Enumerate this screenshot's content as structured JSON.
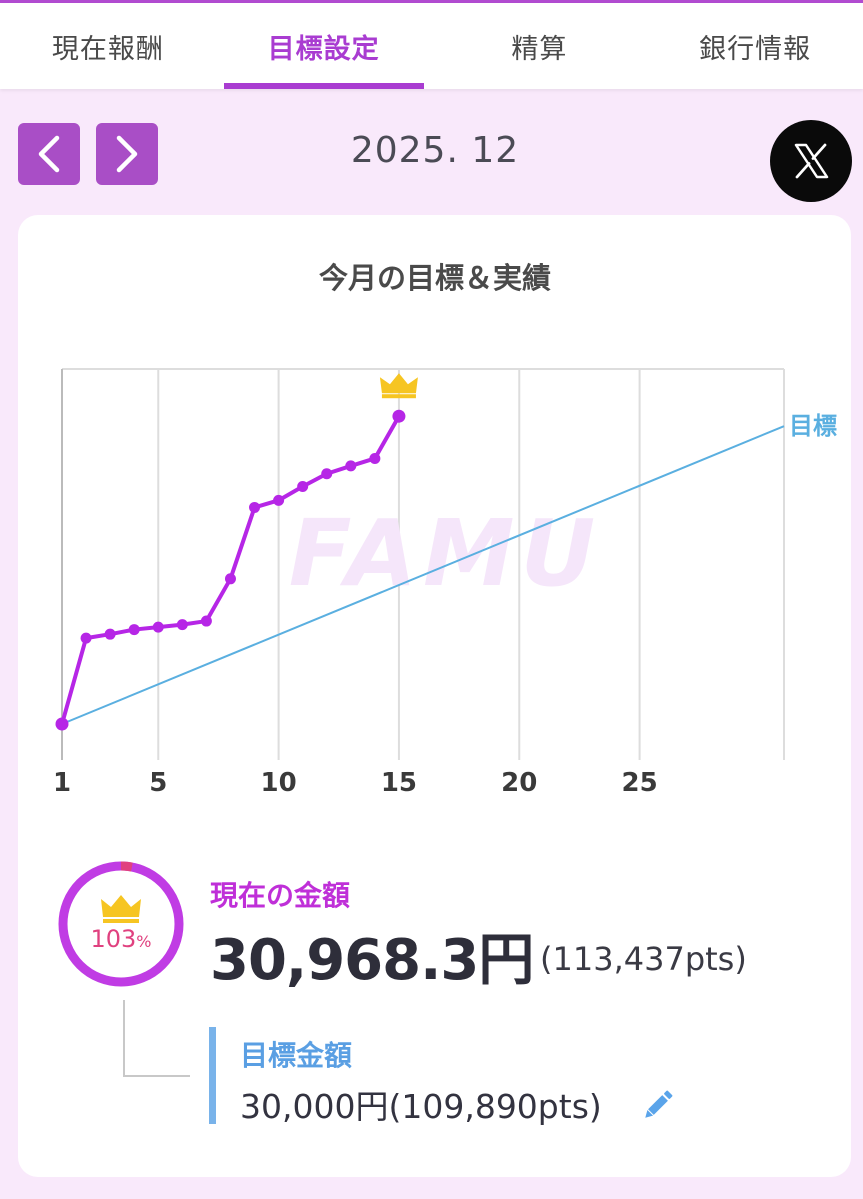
{
  "tabs": [
    {
      "label": "現在報酬",
      "active": false
    },
    {
      "label": "目標設定",
      "active": true
    },
    {
      "label": "精算",
      "active": false
    },
    {
      "label": "銀行情報",
      "active": false
    }
  ],
  "header": {
    "prev_icon": "chevron-left-icon",
    "next_icon": "chevron-right-icon",
    "month": "2025. 12",
    "share_icon": "x-logo-icon"
  },
  "chart_title": "今月の目標＆実績",
  "chart_data": {
    "type": "line",
    "x_ticks": [
      "1",
      "5",
      "10",
      "15",
      "20",
      "25"
    ],
    "xlim": [
      1,
      31
    ],
    "watermark": "FAMU",
    "series": [
      {
        "name": "",
        "color": "#b626e6",
        "x": [
          1,
          2,
          3,
          4,
          5,
          6,
          7,
          8,
          9,
          10,
          11,
          12,
          13,
          14,
          15
        ],
        "values": [
          0,
          24.2,
          25.3,
          26.6,
          27.3,
          28.0,
          29.0,
          40.9,
          61.0,
          63.0,
          66.9,
          70.5,
          72.7,
          74.8,
          86.7
        ],
        "end_marker": "crown-icon"
      },
      {
        "name": "目標",
        "color": "#5aafe0",
        "x": [
          1,
          31
        ],
        "values": [
          0,
          83.9
        ]
      }
    ]
  },
  "summary": {
    "percent": "103",
    "percent_unit": "%",
    "progress_fraction": 1.03,
    "ring_color": "#c03ce4",
    "ring_over_color": "#e0417f",
    "current_label": "現在の金額",
    "current_amount": "30,968.3円",
    "current_pts": "(113,437pts)",
    "goal_label": "目標金額",
    "goal_value": "30,000円(109,890pts)",
    "edit_icon": "pencil-icon"
  }
}
